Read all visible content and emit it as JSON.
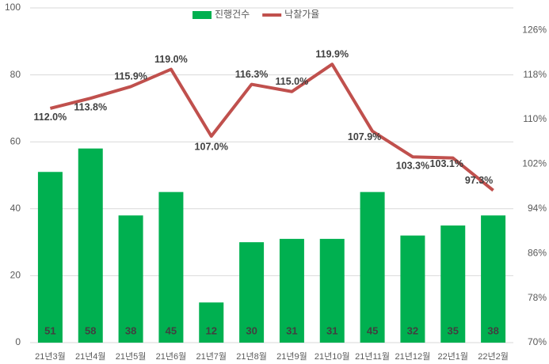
{
  "chart_data": {
    "type": "bar_line",
    "categories": [
      "21년3월",
      "21년4월",
      "21년5월",
      "21년6월",
      "21년7월",
      "21년8월",
      "21년9월",
      "21년10월",
      "21년11월",
      "21년12월",
      "22년1월",
      "22년2월"
    ],
    "series": [
      {
        "name": "진행건수",
        "color": "#00b050",
        "type": "bar",
        "values": [
          51,
          58,
          38,
          45,
          12,
          30,
          31,
          31,
          45,
          32,
          35,
          38
        ]
      },
      {
        "name": "낙찰가율",
        "color": "#c0504d",
        "type": "line",
        "axis": "y2",
        "values": [
          112.0,
          113.8,
          115.9,
          119.0,
          107.0,
          116.3,
          115.0,
          119.9,
          107.9,
          103.3,
          103.1,
          97.3
        ],
        "value_labels": [
          "112.0%",
          "113.8%",
          "115.9%",
          "119.0%",
          "107.0%",
          "116.3%",
          "115.0%",
          "119.9%",
          "107.9%",
          "103.3%",
          "103.1%",
          "97.3%"
        ]
      }
    ],
    "ylim": [
      0,
      100
    ],
    "yticks": [
      0,
      20,
      40,
      60,
      80,
      100
    ],
    "y2lim": [
      70,
      130
    ],
    "y2ticks": [
      {
        "value": 70,
        "label": "70%"
      },
      {
        "value": 78,
        "label": "78%"
      },
      {
        "value": 86,
        "label": "86%"
      },
      {
        "value": 94,
        "label": "94%"
      },
      {
        "value": 102,
        "label": "102%"
      },
      {
        "value": 110,
        "label": "110%"
      },
      {
        "value": 118,
        "label": "118%"
      },
      {
        "value": 126,
        "label": "126%"
      }
    ],
    "grid": true,
    "legend": "top"
  }
}
